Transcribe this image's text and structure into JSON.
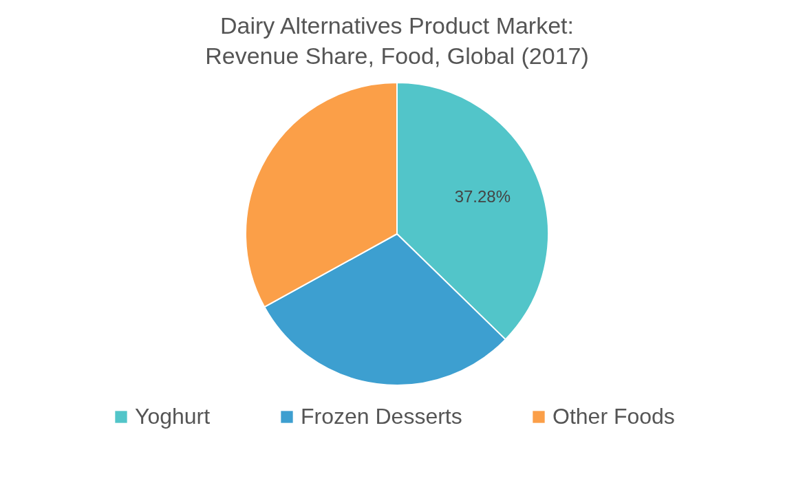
{
  "chart_data": {
    "type": "pie",
    "title": "Dairy Alternatives Product Market: Revenue Share, Food, Global (2017)",
    "categories": [
      "Yoghurt",
      "Frozen Desserts",
      "Other Foods"
    ],
    "values": [
      37.28,
      29.7,
      33.02
    ],
    "colors": [
      "#52c5c9",
      "#3d9fd0",
      "#fb9f48"
    ],
    "value_labels": [
      "37.28%",
      null,
      null
    ],
    "legend": "bottom"
  }
}
